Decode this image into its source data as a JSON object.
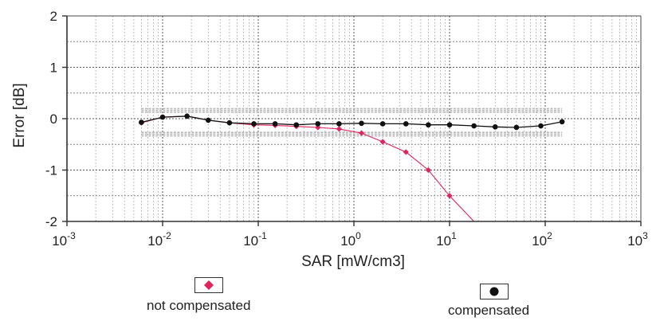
{
  "chart_data": {
    "type": "line",
    "xscale": "log",
    "xlabel": "SAR [mW/cm3]",
    "ylabel": "Error [dB]",
    "xlim": [
      0.001,
      1000
    ],
    "ylim": [
      -2,
      2
    ],
    "yticks": [
      2,
      1,
      0,
      -1,
      -2
    ],
    "xtick_base": "10",
    "xtick_exponents": [
      "-3",
      "-2",
      "-1",
      "0",
      "1",
      "2",
      "3"
    ],
    "grid": true,
    "legend_position": "bottom",
    "uncertainty_band": {
      "upper": 0.16,
      "lower": -0.3
    },
    "series": [
      {
        "name": "not compensated",
        "color": "#e0245e",
        "marker": "diamond",
        "x": [
          0.006,
          0.01,
          0.018,
          0.03,
          0.05,
          0.09,
          0.15,
          0.25,
          0.42,
          0.7,
          1.2,
          2.0,
          3.5,
          6.0,
          10.0,
          18.0
        ],
        "y": [
          -0.08,
          0.03,
          0.05,
          -0.03,
          -0.08,
          -0.12,
          -0.13,
          -0.15,
          -0.17,
          -0.2,
          -0.28,
          -0.45,
          -0.65,
          -1.0,
          -1.5,
          -2.0
        ]
      },
      {
        "name": "compensated",
        "color": "#111111",
        "marker": "circle",
        "x": [
          0.006,
          0.01,
          0.018,
          0.03,
          0.05,
          0.09,
          0.15,
          0.25,
          0.42,
          0.7,
          1.2,
          2.0,
          3.5,
          6.0,
          10.0,
          18.0,
          30.0,
          50.0,
          90.0,
          150.0
        ],
        "y": [
          -0.07,
          0.03,
          0.05,
          -0.03,
          -0.08,
          -0.1,
          -0.1,
          -0.12,
          -0.1,
          -0.1,
          -0.09,
          -0.1,
          -0.1,
          -0.12,
          -0.12,
          -0.14,
          -0.16,
          -0.17,
          -0.14,
          -0.06
        ]
      }
    ]
  }
}
